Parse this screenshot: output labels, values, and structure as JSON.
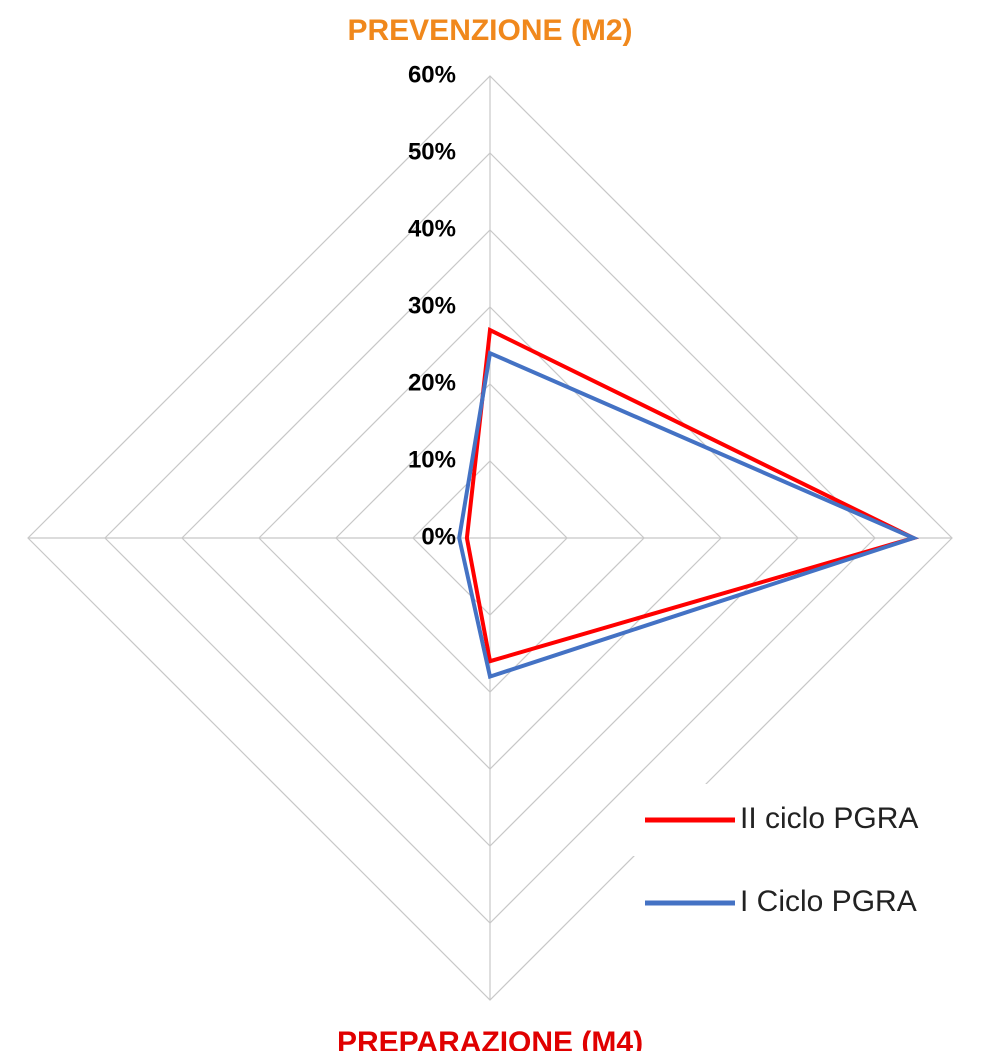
{
  "chart_data": {
    "type": "radar",
    "categories": [
      "PREVENZIONE (M2)",
      null,
      "PREPARAZIONE (M4)",
      null
    ],
    "category_colors": [
      "#f0881c",
      null,
      "#e00000",
      null
    ],
    "series": [
      {
        "name": "II ciclo PGRA",
        "color": "#ff0000",
        "values": [
          27,
          55,
          16,
          3
        ]
      },
      {
        "name": "I Ciclo PGRA",
        "color": "#4472c4",
        "values": [
          24,
          55,
          18,
          4
        ]
      }
    ],
    "ylim": [
      0,
      60
    ],
    "yticks": [
      {
        "value": 0,
        "label": "0%"
      },
      {
        "value": 10,
        "label": "10%"
      },
      {
        "value": 20,
        "label": "20%"
      },
      {
        "value": 30,
        "label": "30%"
      },
      {
        "value": 40,
        "label": "40%"
      },
      {
        "value": 50,
        "label": "50%"
      },
      {
        "value": 60,
        "label": "60%"
      }
    ],
    "grid": true,
    "legend": "bottom-right"
  }
}
